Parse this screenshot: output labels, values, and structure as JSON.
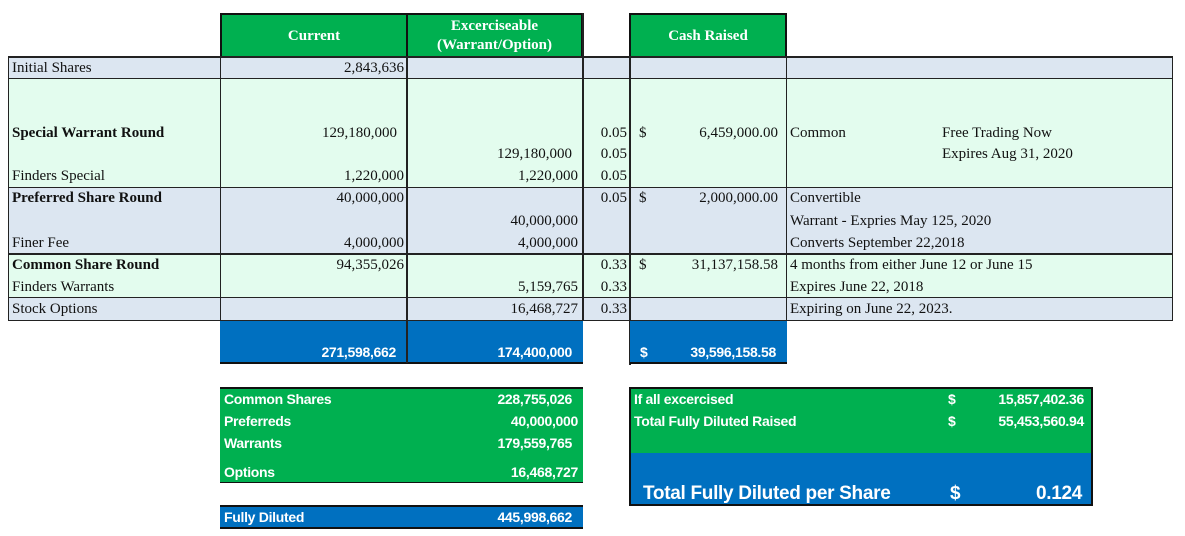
{
  "colors": {
    "header_green": "#00b050",
    "total_blue": "#0070c0",
    "row_blue": "#dce6f1",
    "row_green": "#e3fcee"
  },
  "headers": {
    "current": "Current",
    "exercisable_1": "Excerciseable",
    "exercisable_2": "(Warrant/Option)",
    "cash": "Cash Raised"
  },
  "rows": {
    "initial": {
      "label": "Initial Shares",
      "current": "2,843,636"
    },
    "special": {
      "label": "Special Warrant Round",
      "current": "129,180,000",
      "price": "0.05",
      "cur": "$",
      "cash": "6,459,000.00",
      "note1": "Common",
      "note2": "Free Trading Now"
    },
    "special2": {
      "exercisable": "129,180,000",
      "price": "0.05",
      "note2": "Expires Aug 31, 2020"
    },
    "finders_special": {
      "label": "Finders Special",
      "current": "1,220,000",
      "exercisable": "1,220,000",
      "price": "0.05"
    },
    "preferred": {
      "label": "Preferred Share Round",
      "current": "40,000,000",
      "price": "0.05",
      "cur": "$",
      "cash": "2,000,000.00",
      "note": "Convertible"
    },
    "preferred2": {
      "exercisable": "40,000,000",
      "note": "Warrant - Expries May 125, 2020"
    },
    "finer_fee": {
      "label": "Finer Fee",
      "current": "4,000,000",
      "exercisable": "4,000,000",
      "note": "Converts  September 22,2018"
    },
    "common": {
      "label": "Common Share Round",
      "current": "94,355,026",
      "price": "0.33",
      "cur": "$",
      "cash": "31,137,158.58",
      "note": "4 months from either June 12 or June 15"
    },
    "finders_warrants": {
      "label": "Finders Warrants",
      "exercisable": "5,159,765",
      "price": "0.33",
      "note": "Expires June 22, 2018"
    },
    "stock_options": {
      "label": "Stock Options",
      "exercisable": "16,468,727",
      "price": "0.33",
      "note": "Expiring on June 22, 2023."
    }
  },
  "totals": {
    "current": "271,598,662",
    "exercisable": "174,400,000",
    "cur": "$",
    "cash": "39,596,158.58"
  },
  "summary": {
    "common_label": "Common Shares",
    "common": "228,755,026",
    "pref_label": "Preferreds",
    "pref": "40,000,000",
    "warr_label": "Warrants",
    "warr": "179,559,765",
    "opt_label": "Options",
    "opt": "16,468,727",
    "fd_label": "Fully Diluted",
    "fd": "445,998,662"
  },
  "raised": {
    "exercised_label": "If all excercised",
    "cur": "$",
    "exercised": "15,857,402.36",
    "total_label": "Total Fully Diluted Raised",
    "total": "55,453,560.94",
    "per_share_label": "Total Fully Diluted per Share",
    "per_share": "0.124"
  }
}
